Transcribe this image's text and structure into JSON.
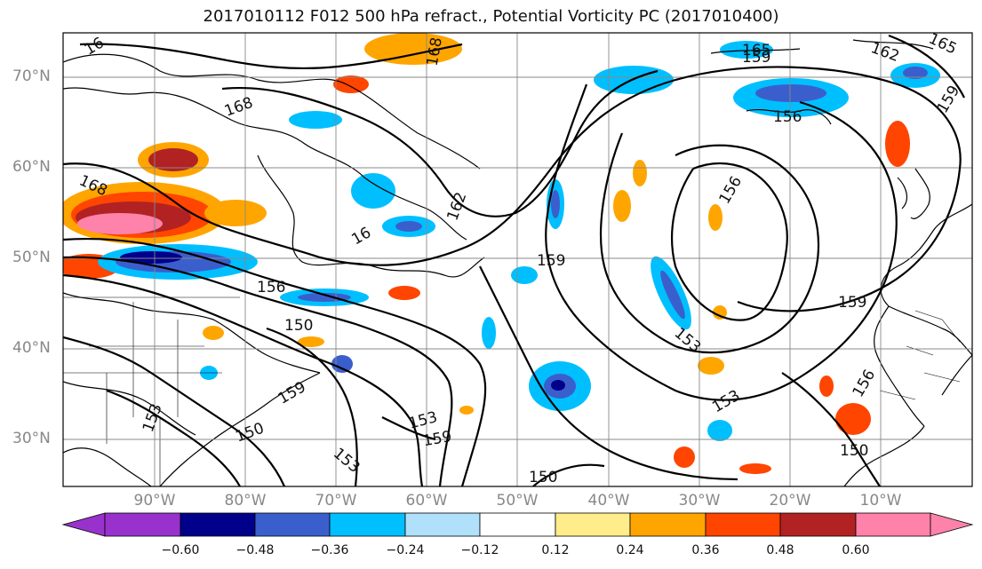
{
  "title": "2017010112 F012 500 hPa refract., Potential Vorticity PC (2017010400)",
  "map": {
    "lat_labels": [
      "70°N",
      "60°N",
      "50°N",
      "40°N",
      "30°N"
    ],
    "lon_labels": [
      "90°W",
      "80°W",
      "70°W",
      "60°W",
      "50°W",
      "40°W",
      "30°W",
      "20°W",
      "10°W"
    ],
    "contour_labels": [
      "162",
      "165",
      "168",
      "168",
      "159",
      "168",
      "156",
      "159",
      "159",
      "156",
      "162",
      "165",
      "156",
      "159",
      "153",
      "153",
      "159",
      "150",
      "153",
      "153",
      "150",
      "159",
      "156",
      "150",
      "16",
      "16",
      "153",
      "150"
    ]
  },
  "colorbar": {
    "labels": [
      "−0.60",
      "−0.48",
      "−0.36",
      "−0.24",
      "−0.12",
      "0.12",
      "0.24",
      "0.36",
      "0.48",
      "0.60"
    ],
    "colors": [
      "#9932cc",
      "#00008b",
      "#3a5fcd",
      "#00bfff",
      "#b0e0fa",
      "#ffffff",
      "#ffec8b",
      "#ffa500",
      "#ff4500",
      "#b22222",
      "#ff82ab"
    ]
  }
}
